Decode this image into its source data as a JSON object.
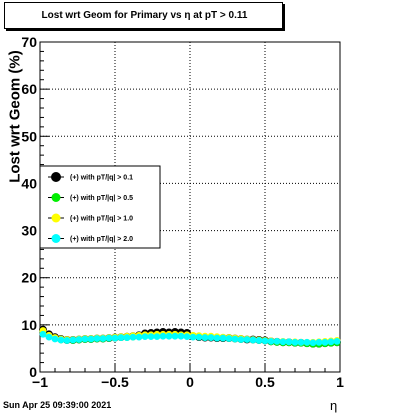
{
  "title": "Lost wrt Geom for Primary vs   η at pT > 0.11",
  "timestamp": "Sun Apr 25 09:39:00 2021",
  "chart_data": {
    "type": "scatter",
    "title": "Lost wrt Geom for Primary vs   η at pT > 0.11",
    "xlabel": "η",
    "ylabel": "Lost  wrt  Geom (%)",
    "xlim": [
      -1,
      1
    ],
    "ylim": [
      0,
      70
    ],
    "x_ticks": [
      "−1",
      "−0.5",
      "0",
      "0.5",
      "1"
    ],
    "y_ticks": [
      "0",
      "10",
      "20",
      "30",
      "40",
      "50",
      "60",
      "70"
    ],
    "grid": true,
    "legend_position": "left-middle",
    "series": [
      {
        "name": "(+) with pT/|q| > 0.1",
        "color": "#000000",
        "x": [
          -0.98,
          -0.94,
          -0.9,
          -0.86,
          -0.82,
          -0.78,
          -0.74,
          -0.7,
          -0.66,
          -0.62,
          -0.58,
          -0.54,
          -0.5,
          -0.46,
          -0.42,
          -0.38,
          -0.34,
          -0.3,
          -0.26,
          -0.22,
          -0.18,
          -0.14,
          -0.1,
          -0.06,
          -0.02,
          0.02,
          0.06,
          0.1,
          0.14,
          0.18,
          0.22,
          0.26,
          0.3,
          0.34,
          0.38,
          0.42,
          0.46,
          0.5,
          0.54,
          0.58,
          0.62,
          0.66,
          0.7,
          0.74,
          0.78,
          0.82,
          0.86,
          0.9,
          0.94,
          0.98
        ],
        "y": [
          9.0,
          8.0,
          7.4,
          7.0,
          6.8,
          6.8,
          6.9,
          7.0,
          7.0,
          7.1,
          7.1,
          7.2,
          7.3,
          7.4,
          7.5,
          7.6,
          7.8,
          8.2,
          8.3,
          8.4,
          8.5,
          8.4,
          8.5,
          8.4,
          8.3,
          7.6,
          7.4,
          7.3,
          7.3,
          7.2,
          7.2,
          7.2,
          7.1,
          7.0,
          6.9,
          6.9,
          6.8,
          6.7,
          6.5,
          6.4,
          6.3,
          6.3,
          6.2,
          6.2,
          6.1,
          6.0,
          6.0,
          6.1,
          6.2,
          6.3
        ]
      },
      {
        "name": "(+) with pT/|q| > 0.5",
        "color": "#00ee00",
        "x": [
          -0.98,
          -0.94,
          -0.9,
          -0.86,
          -0.82,
          -0.78,
          -0.74,
          -0.7,
          -0.66,
          -0.62,
          -0.58,
          -0.54,
          -0.5,
          -0.46,
          -0.42,
          -0.38,
          -0.34,
          -0.3,
          -0.26,
          -0.22,
          -0.18,
          -0.14,
          -0.1,
          -0.06,
          -0.02,
          0.02,
          0.06,
          0.1,
          0.14,
          0.18,
          0.22,
          0.26,
          0.3,
          0.34,
          0.38,
          0.42,
          0.46,
          0.5,
          0.54,
          0.58,
          0.62,
          0.66,
          0.7,
          0.74,
          0.78,
          0.82,
          0.86,
          0.9,
          0.94,
          0.98
        ],
        "y": [
          8.6,
          7.6,
          7.2,
          6.8,
          6.7,
          6.7,
          6.8,
          6.9,
          6.9,
          7.0,
          7.0,
          7.1,
          7.2,
          7.3,
          7.3,
          7.4,
          7.5,
          7.6,
          7.7,
          7.7,
          7.8,
          7.8,
          7.8,
          7.8,
          7.7,
          7.5,
          7.4,
          7.3,
          7.3,
          7.2,
          7.2,
          7.1,
          7.0,
          6.9,
          6.9,
          6.8,
          6.7,
          6.6,
          6.4,
          6.3,
          6.2,
          6.2,
          6.1,
          6.1,
          6.0,
          5.9,
          5.9,
          6.0,
          6.1,
          6.2
        ]
      },
      {
        "name": "(+) with pT/|q| > 1.0",
        "color": "#ffff00",
        "x": [
          -0.98,
          -0.94,
          -0.9,
          -0.86,
          -0.82,
          -0.78,
          -0.74,
          -0.7,
          -0.66,
          -0.62,
          -0.58,
          -0.54,
          -0.5,
          -0.46,
          -0.42,
          -0.38,
          -0.34,
          -0.3,
          -0.26,
          -0.22,
          -0.18,
          -0.14,
          -0.1,
          -0.06,
          -0.02,
          0.02,
          0.06,
          0.1,
          0.14,
          0.18,
          0.22,
          0.26,
          0.3,
          0.34,
          0.38,
          0.42,
          0.46,
          0.5,
          0.54,
          0.58,
          0.62,
          0.66,
          0.7,
          0.74,
          0.78,
          0.82,
          0.86,
          0.9,
          0.94,
          0.98
        ],
        "y": [
          8.8,
          7.8,
          7.3,
          7.0,
          6.9,
          6.9,
          7.0,
          7.1,
          7.1,
          7.2,
          7.2,
          7.3,
          7.4,
          7.5,
          7.6,
          7.7,
          7.8,
          7.9,
          7.9,
          8.0,
          8.0,
          8.0,
          8.0,
          7.9,
          7.9,
          7.8,
          7.7,
          7.6,
          7.6,
          7.5,
          7.4,
          7.3,
          7.2,
          7.1,
          7.0,
          6.9,
          6.8,
          6.7,
          6.6,
          6.5,
          6.5,
          6.4,
          6.4,
          6.3,
          6.3,
          6.3,
          6.4,
          6.5,
          6.6,
          6.7
        ]
      },
      {
        "name": "(+) with pT/|q| > 2.0",
        "color": "#00ffff",
        "x": [
          -0.98,
          -0.94,
          -0.9,
          -0.86,
          -0.82,
          -0.78,
          -0.74,
          -0.7,
          -0.66,
          -0.62,
          -0.58,
          -0.54,
          -0.5,
          -0.46,
          -0.42,
          -0.38,
          -0.34,
          -0.3,
          -0.26,
          -0.22,
          -0.18,
          -0.14,
          -0.1,
          -0.06,
          -0.02,
          0.02,
          0.06,
          0.1,
          0.14,
          0.18,
          0.22,
          0.26,
          0.3,
          0.34,
          0.38,
          0.42,
          0.46,
          0.5,
          0.54,
          0.58,
          0.62,
          0.66,
          0.7,
          0.74,
          0.78,
          0.82,
          0.86,
          0.9,
          0.94,
          0.98
        ],
        "y": [
          8.0,
          7.4,
          7.0,
          6.8,
          6.7,
          6.8,
          6.9,
          7.0,
          7.0,
          7.1,
          7.1,
          7.2,
          7.2,
          7.3,
          7.3,
          7.4,
          7.4,
          7.5,
          7.5,
          7.5,
          7.6,
          7.6,
          7.6,
          7.6,
          7.5,
          7.4,
          7.4,
          7.3,
          7.3,
          7.2,
          7.2,
          7.1,
          7.0,
          6.9,
          6.9,
          6.8,
          6.7,
          6.6,
          6.5,
          6.5,
          6.4,
          6.4,
          6.3,
          6.3,
          6.3,
          6.2,
          6.3,
          6.3,
          6.4,
          6.5
        ]
      }
    ]
  }
}
